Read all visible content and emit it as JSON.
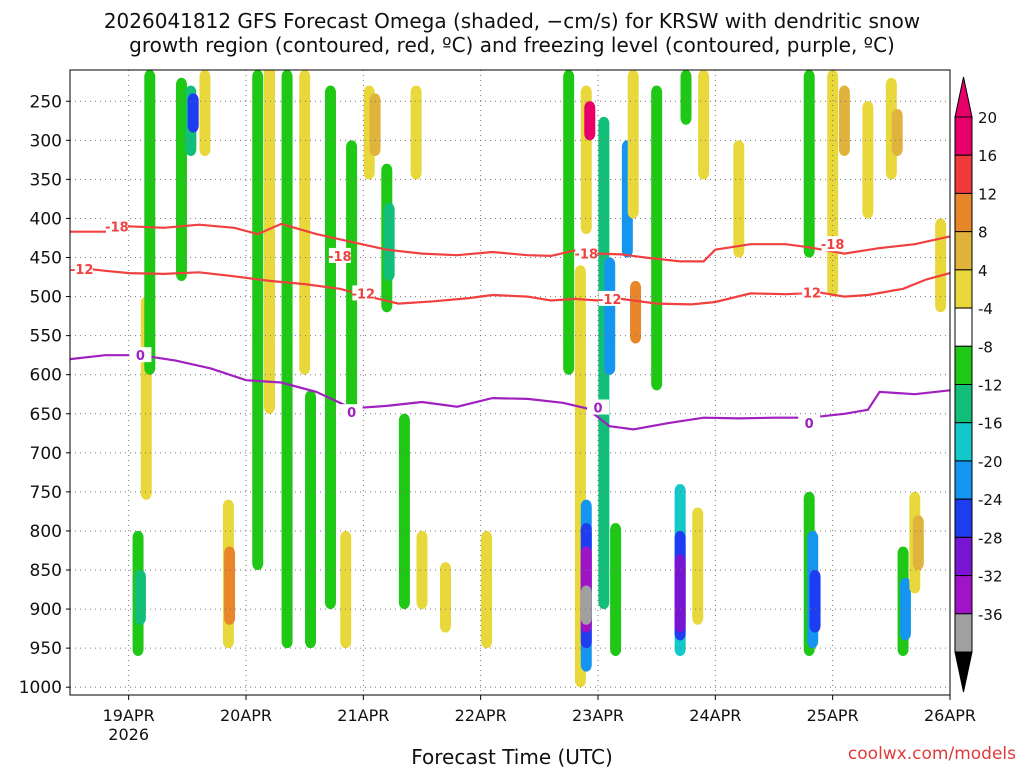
{
  "chart_data": {
    "type": "heatmap",
    "title_line1": "2026041812 GFS Forecast Omega (shaded, −cm/s) for KRSW with dendritic snow",
    "title_line2": "growth region (contoured, red, ºC) and freezing level (contoured, purple, ºC)",
    "xlabel": "Forecast Time (UTC)",
    "credit": "coolwx.com/models",
    "y_axis": {
      "quantity": "pressure (hPa)",
      "reversed": true,
      "range": [
        210,
        1010
      ],
      "ticks": [
        250,
        300,
        350,
        400,
        450,
        500,
        550,
        600,
        650,
        700,
        750,
        800,
        850,
        900,
        950,
        1000
      ]
    },
    "x_axis": {
      "range_days": [
        18.5,
        26.0
      ],
      "ticks": [
        {
          "day": 19,
          "label": "19APR",
          "sublabel": "2026"
        },
        {
          "day": 20,
          "label": "20APR"
        },
        {
          "day": 21,
          "label": "21APR"
        },
        {
          "day": 22,
          "label": "22APR"
        },
        {
          "day": 23,
          "label": "23APR"
        },
        {
          "day": 24,
          "label": "24APR"
        },
        {
          "day": 25,
          "label": "25APR"
        },
        {
          "day": 26,
          "label": "26APR"
        }
      ]
    },
    "colorbar": {
      "levels": [
        {
          "label": "20",
          "color": "#e8006a"
        },
        {
          "label": "16",
          "color": "#ee3a3a"
        },
        {
          "label": "12",
          "color": "#e8862a"
        },
        {
          "label": "8",
          "color": "#e0b43c"
        },
        {
          "label": "4",
          "color": "#e8d83c"
        },
        {
          "label": "-4",
          "color": "#ffffff"
        },
        {
          "label": "-8",
          "color": "#1ec814"
        },
        {
          "label": "-12",
          "color": "#12bf78"
        },
        {
          "label": "-16",
          "color": "#12c8c8"
        },
        {
          "label": "-20",
          "color": "#1496f0"
        },
        {
          "label": "-24",
          "color": "#1e3cf0"
        },
        {
          "label": "-28",
          "color": "#7814d2"
        },
        {
          "label": "-32",
          "color": "#a014c8"
        },
        {
          "label": "-36",
          "color": "#a0a0a0"
        }
      ],
      "extend_high_color": "#e8006a",
      "extend_low_color": "#000000"
    },
    "contours": [
      {
        "name": "-18C isotherm",
        "color": "#f04040",
        "label": "-18",
        "label_points": [
          {
            "day": 18.9,
            "p": 410
          },
          {
            "day": 20.8,
            "p": 448
          },
          {
            "day": 22.9,
            "p": 445
          },
          {
            "day": 25.0,
            "p": 433
          }
        ],
        "points": [
          [
            18.5,
            417
          ],
          [
            18.8,
            417
          ],
          [
            19.0,
            410
          ],
          [
            19.3,
            412
          ],
          [
            19.6,
            408
          ],
          [
            19.9,
            412
          ],
          [
            20.1,
            420
          ],
          [
            20.3,
            407
          ],
          [
            20.6,
            420
          ],
          [
            20.9,
            430
          ],
          [
            21.2,
            440
          ],
          [
            21.5,
            445
          ],
          [
            21.8,
            447
          ],
          [
            22.1,
            443
          ],
          [
            22.4,
            447
          ],
          [
            22.6,
            448
          ],
          [
            22.8,
            441
          ],
          [
            23.0,
            445
          ],
          [
            23.2,
            446
          ],
          [
            23.4,
            450
          ],
          [
            23.7,
            455
          ],
          [
            23.9,
            455
          ],
          [
            24.0,
            440
          ],
          [
            24.3,
            433
          ],
          [
            24.6,
            433
          ],
          [
            24.8,
            437
          ],
          [
            25.1,
            445
          ],
          [
            25.4,
            438
          ],
          [
            25.7,
            433
          ],
          [
            26.0,
            423
          ]
        ]
      },
      {
        "name": "-12C isotherm",
        "color": "#f04040",
        "label": "-12",
        "label_points": [
          {
            "day": 18.6,
            "p": 465
          },
          {
            "day": 21.0,
            "p": 496
          },
          {
            "day": 23.1,
            "p": 503
          },
          {
            "day": 24.8,
            "p": 495
          }
        ],
        "points": [
          [
            18.5,
            462
          ],
          [
            18.8,
            467
          ],
          [
            19.0,
            470
          ],
          [
            19.3,
            471
          ],
          [
            19.6,
            469
          ],
          [
            19.9,
            474
          ],
          [
            20.2,
            480
          ],
          [
            20.5,
            484
          ],
          [
            20.8,
            490
          ],
          [
            21.1,
            502
          ],
          [
            21.3,
            509
          ],
          [
            21.6,
            506
          ],
          [
            21.9,
            502
          ],
          [
            22.1,
            498
          ],
          [
            22.4,
            500
          ],
          [
            22.6,
            505
          ],
          [
            22.8,
            503
          ],
          [
            23.0,
            505
          ],
          [
            23.2,
            503
          ],
          [
            23.5,
            509
          ],
          [
            23.8,
            510
          ],
          [
            24.0,
            507
          ],
          [
            24.3,
            496
          ],
          [
            24.6,
            497
          ],
          [
            24.9,
            495
          ],
          [
            25.1,
            500
          ],
          [
            25.3,
            498
          ],
          [
            25.6,
            490
          ],
          [
            25.8,
            478
          ],
          [
            26.0,
            470
          ]
        ]
      },
      {
        "name": "0C freezing level",
        "color": "#a020c0",
        "label": "0",
        "label_points": [
          {
            "day": 19.1,
            "p": 575
          },
          {
            "day": 20.9,
            "p": 648
          },
          {
            "day": 23.0,
            "p": 642
          },
          {
            "day": 24.8,
            "p": 662
          }
        ],
        "points": [
          [
            18.5,
            580
          ],
          [
            18.8,
            575
          ],
          [
            19.1,
            575
          ],
          [
            19.4,
            582
          ],
          [
            19.7,
            592
          ],
          [
            20.0,
            607
          ],
          [
            20.3,
            610
          ],
          [
            20.6,
            622
          ],
          [
            20.9,
            643
          ],
          [
            21.2,
            640
          ],
          [
            21.5,
            635
          ],
          [
            21.8,
            641
          ],
          [
            22.1,
            630
          ],
          [
            22.4,
            631
          ],
          [
            22.7,
            636
          ],
          [
            22.9,
            643
          ],
          [
            23.1,
            666
          ],
          [
            23.3,
            670
          ],
          [
            23.6,
            662
          ],
          [
            23.9,
            655
          ],
          [
            24.2,
            656
          ],
          [
            24.5,
            655
          ],
          [
            24.8,
            655
          ],
          [
            25.1,
            650
          ],
          [
            25.3,
            645
          ],
          [
            25.4,
            622
          ],
          [
            25.7,
            625
          ],
          [
            26.0,
            620
          ]
        ]
      }
    ],
    "omega_patches": [
      {
        "day": 19.08,
        "p0": 800,
        "p1": 960,
        "color": "#1ec814"
      },
      {
        "day": 19.1,
        "p0": 850,
        "p1": 920,
        "color": "#12bf78"
      },
      {
        "day": 19.15,
        "p0": 500,
        "p1": 760,
        "color": "#e8d83c"
      },
      {
        "day": 19.18,
        "p0": 210,
        "p1": 600,
        "color": "#1ec814"
      },
      {
        "day": 19.45,
        "p0": 220,
        "p1": 480,
        "color": "#1ec814"
      },
      {
        "day": 19.53,
        "p0": 230,
        "p1": 320,
        "color": "#12bf78"
      },
      {
        "day": 19.55,
        "p0": 240,
        "p1": 290,
        "color": "#1e3cf0"
      },
      {
        "day": 19.65,
        "p0": 210,
        "p1": 320,
        "color": "#e8d83c"
      },
      {
        "day": 19.85,
        "p0": 760,
        "p1": 950,
        "color": "#e8d83c"
      },
      {
        "day": 19.86,
        "p0": 820,
        "p1": 920,
        "color": "#e8862a"
      },
      {
        "day": 20.1,
        "p0": 210,
        "p1": 850,
        "color": "#1ec814"
      },
      {
        "day": 20.2,
        "p0": 200,
        "p1": 650,
        "color": "#e8d83c"
      },
      {
        "day": 20.35,
        "p0": 210,
        "p1": 950,
        "color": "#1ec814"
      },
      {
        "day": 20.5,
        "p0": 210,
        "p1": 600,
        "color": "#e8d83c"
      },
      {
        "day": 20.55,
        "p0": 620,
        "p1": 950,
        "color": "#1ec814"
      },
      {
        "day": 20.72,
        "p0": 230,
        "p1": 900,
        "color": "#1ec814"
      },
      {
        "day": 20.85,
        "p0": 800,
        "p1": 950,
        "color": "#e8d83c"
      },
      {
        "day": 20.9,
        "p0": 300,
        "p1": 650,
        "color": "#1ec814"
      },
      {
        "day": 21.05,
        "p0": 230,
        "p1": 350,
        "color": "#e8d83c"
      },
      {
        "day": 21.1,
        "p0": 240,
        "p1": 320,
        "color": "#e0b43c"
      },
      {
        "day": 21.2,
        "p0": 330,
        "p1": 520,
        "color": "#1ec814"
      },
      {
        "day": 21.22,
        "p0": 380,
        "p1": 480,
        "color": "#12bf78"
      },
      {
        "day": 21.35,
        "p0": 650,
        "p1": 900,
        "color": "#1ec814"
      },
      {
        "day": 21.45,
        "p0": 230,
        "p1": 350,
        "color": "#e8d83c"
      },
      {
        "day": 21.5,
        "p0": 800,
        "p1": 900,
        "color": "#e8d83c"
      },
      {
        "day": 21.7,
        "p0": 840,
        "p1": 930,
        "color": "#e8d83c"
      },
      {
        "day": 22.05,
        "p0": 800,
        "p1": 950,
        "color": "#e8d83c"
      },
      {
        "day": 22.75,
        "p0": 210,
        "p1": 600,
        "color": "#1ec814"
      },
      {
        "day": 22.85,
        "p0": 460,
        "p1": 1000,
        "color": "#e8d83c"
      },
      {
        "day": 22.9,
        "p0": 230,
        "p1": 420,
        "color": "#e8d83c"
      },
      {
        "day": 22.93,
        "p0": 250,
        "p1": 300,
        "color": "#e8006a"
      },
      {
        "day": 22.9,
        "p0": 760,
        "p1": 980,
        "color": "#1496f0"
      },
      {
        "day": 22.9,
        "p0": 790,
        "p1": 950,
        "color": "#1e3cf0"
      },
      {
        "day": 22.9,
        "p0": 820,
        "p1": 930,
        "color": "#a014c8"
      },
      {
        "day": 22.9,
        "p0": 870,
        "p1": 920,
        "color": "#a0a0a0"
      },
      {
        "day": 23.05,
        "p0": 270,
        "p1": 900,
        "color": "#12bf78"
      },
      {
        "day": 23.1,
        "p0": 450,
        "p1": 600,
        "color": "#1496f0"
      },
      {
        "day": 23.15,
        "p0": 790,
        "p1": 960,
        "color": "#1ec814"
      },
      {
        "day": 23.25,
        "p0": 300,
        "p1": 450,
        "color": "#1496f0"
      },
      {
        "day": 23.3,
        "p0": 210,
        "p1": 400,
        "color": "#e8d83c"
      },
      {
        "day": 23.32,
        "p0": 480,
        "p1": 560,
        "color": "#e8862a"
      },
      {
        "day": 23.5,
        "p0": 230,
        "p1": 620,
        "color": "#1ec814"
      },
      {
        "day": 23.7,
        "p0": 740,
        "p1": 960,
        "color": "#12c8c8"
      },
      {
        "day": 23.7,
        "p0": 800,
        "p1": 940,
        "color": "#1e3cf0"
      },
      {
        "day": 23.7,
        "p0": 830,
        "p1": 930,
        "color": "#7814d2"
      },
      {
        "day": 23.75,
        "p0": 210,
        "p1": 280,
        "color": "#1ec814"
      },
      {
        "day": 23.85,
        "p0": 770,
        "p1": 920,
        "color": "#e8d83c"
      },
      {
        "day": 23.9,
        "p0": 210,
        "p1": 350,
        "color": "#e8d83c"
      },
      {
        "day": 24.2,
        "p0": 300,
        "p1": 450,
        "color": "#e8d83c"
      },
      {
        "day": 24.8,
        "p0": 210,
        "p1": 450,
        "color": "#1ec814"
      },
      {
        "day": 24.8,
        "p0": 750,
        "p1": 960,
        "color": "#1ec814"
      },
      {
        "day": 24.83,
        "p0": 800,
        "p1": 950,
        "color": "#1496f0"
      },
      {
        "day": 24.85,
        "p0": 850,
        "p1": 930,
        "color": "#1e3cf0"
      },
      {
        "day": 25.0,
        "p0": 210,
        "p1": 500,
        "color": "#e8d83c"
      },
      {
        "day": 25.1,
        "p0": 230,
        "p1": 320,
        "color": "#e0b43c"
      },
      {
        "day": 25.3,
        "p0": 250,
        "p1": 400,
        "color": "#e8d83c"
      },
      {
        "day": 25.5,
        "p0": 220,
        "p1": 350,
        "color": "#e8d83c"
      },
      {
        "day": 25.55,
        "p0": 260,
        "p1": 320,
        "color": "#e0b43c"
      },
      {
        "day": 25.6,
        "p0": 820,
        "p1": 960,
        "color": "#1ec814"
      },
      {
        "day": 25.62,
        "p0": 860,
        "p1": 940,
        "color": "#1496f0"
      },
      {
        "day": 25.7,
        "p0": 750,
        "p1": 880,
        "color": "#e8d83c"
      },
      {
        "day": 25.73,
        "p0": 780,
        "p1": 850,
        "color": "#e0b43c"
      },
      {
        "day": 25.92,
        "p0": 400,
        "p1": 520,
        "color": "#e8d83c"
      }
    ],
    "terrain": {
      "p_top": 1010,
      "color": "#a0522d"
    }
  }
}
